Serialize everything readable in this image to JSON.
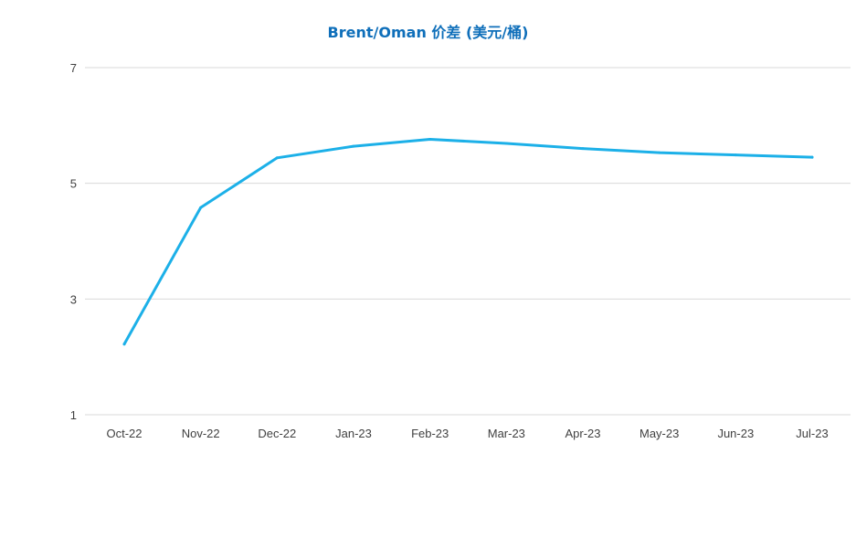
{
  "chart_data": {
    "type": "line",
    "title": "Brent/Oman 价差 (美元/桶)",
    "xlabel": "",
    "ylabel": "",
    "categories": [
      "Oct-22",
      "Nov-22",
      "Dec-22",
      "Jan-23",
      "Feb-23",
      "Mar-23",
      "Apr-23",
      "May-23",
      "Jun-23",
      "Jul-23"
    ],
    "series": [
      {
        "values": [
          2.22,
          4.58,
          5.44,
          5.64,
          5.76,
          5.69,
          5.6,
          5.53,
          5.49,
          5.45
        ],
        "color": "#1cb0e8"
      }
    ],
    "y_ticks": [
      1,
      3,
      5,
      7
    ],
    "ylim": [
      1,
      7
    ],
    "grid": true,
    "legend": "none"
  }
}
